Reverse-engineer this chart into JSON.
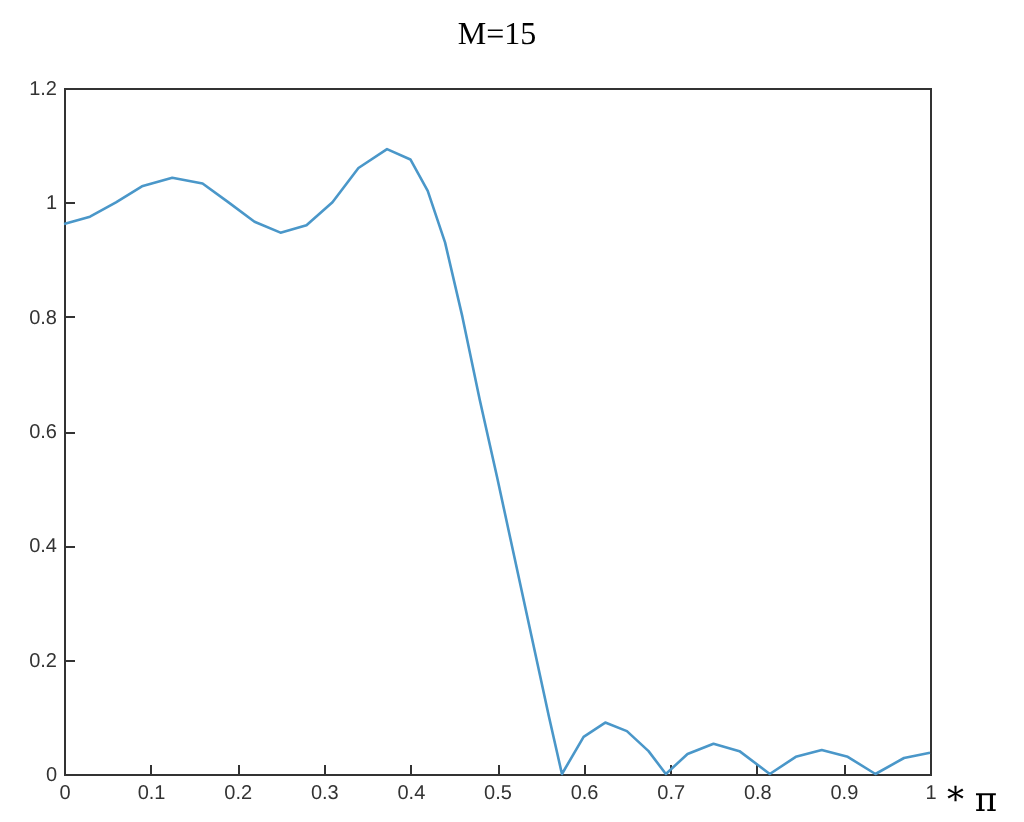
{
  "chart_data": {
    "type": "line",
    "title": "M=15",
    "xlabel": "* π",
    "x": [
      0,
      0.03,
      0.06,
      0.09,
      0.125,
      0.16,
      0.19,
      0.22,
      0.25,
      0.28,
      0.31,
      0.34,
      0.373,
      0.4,
      0.42,
      0.44,
      0.46,
      0.48,
      0.5,
      0.52,
      0.54,
      0.56,
      0.575,
      0.6,
      0.625,
      0.65,
      0.675,
      0.695,
      0.72,
      0.75,
      0.78,
      0.815,
      0.845,
      0.875,
      0.905,
      0.937,
      0.97,
      1.0
    ],
    "series": [
      {
        "color": "#4a97c9",
        "values": [
          0.962,
          0.975,
          1.0,
          1.028,
          1.043,
          1.033,
          1.0,
          0.966,
          0.947,
          0.96,
          1.0,
          1.06,
          1.093,
          1.075,
          1.02,
          0.93,
          0.8,
          0.655,
          0.52,
          0.38,
          0.24,
          0.1,
          0,
          0.065,
          0.09,
          0.075,
          0.04,
          0,
          0.035,
          0.053,
          0.04,
          0,
          0.03,
          0.042,
          0.03,
          0,
          0.028,
          0.037
        ]
      }
    ],
    "xlim": [
      0,
      1
    ],
    "xticks": [
      0,
      0.1,
      0.2,
      0.3,
      0.4,
      0.5,
      0.6,
      0.7,
      0.8,
      0.9,
      1
    ],
    "ylim": [
      0,
      1.2
    ],
    "yticks": [
      0,
      0.2,
      0.4,
      0.6,
      0.8,
      1,
      1.2
    ],
    "grid": false,
    "legend": false,
    "marker": "none",
    "line_style": "solid"
  }
}
